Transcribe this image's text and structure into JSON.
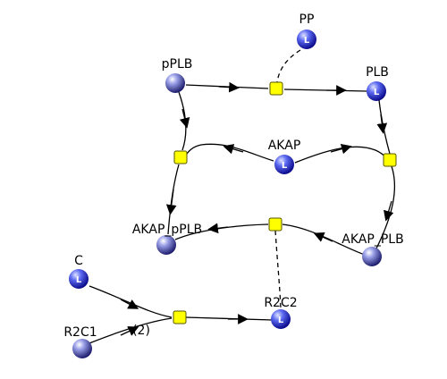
{
  "colors": {
    "node_light": "#9fa3f0",
    "node_dark": "#1f1f8a",
    "process": "#ffff00",
    "edge": "#000000"
  },
  "nodes": {
    "pp": {
      "label": "PP",
      "marker": "L"
    },
    "pplb": {
      "label": "pPLB",
      "marker": ""
    },
    "plb": {
      "label": "PLB",
      "marker": "L"
    },
    "akap": {
      "label": "AKAP",
      "marker": "L"
    },
    "akap_pplb": {
      "label": "AKAP_pPLB",
      "marker": ""
    },
    "akap_plb": {
      "label": "AKAP_PLB",
      "marker": ""
    },
    "c": {
      "label": "C",
      "marker": "L"
    },
    "r2c1": {
      "label": "R2C1",
      "marker": ""
    },
    "r2c2": {
      "label": "R2C2",
      "marker": "L"
    }
  },
  "stoichiometry": {
    "r2c1_label": "(2)"
  }
}
